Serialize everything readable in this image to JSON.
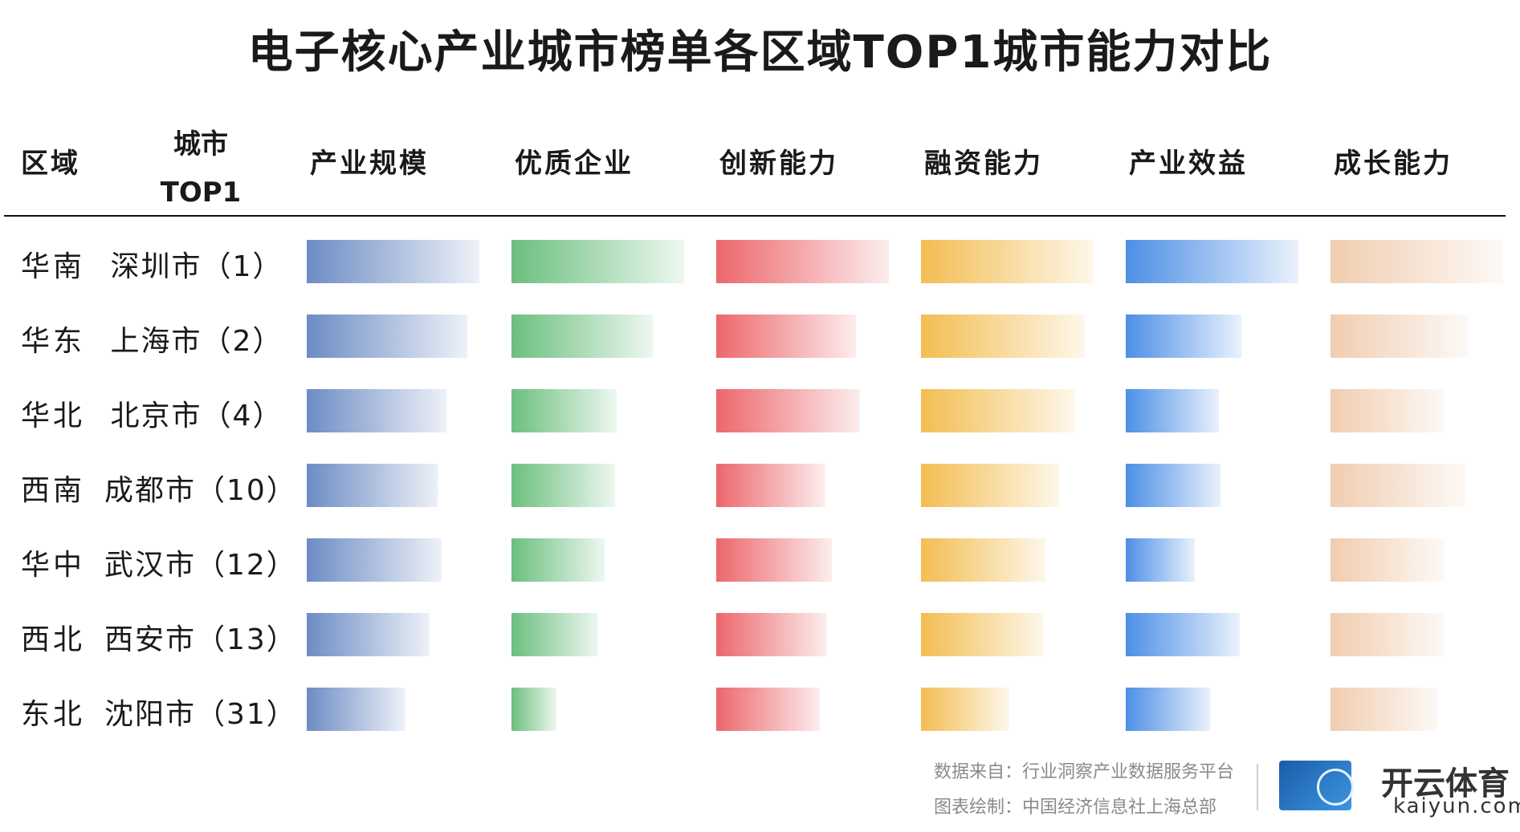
{
  "title": "电子核心产业城市榜单各区域TOP1城市能力对比",
  "headers": {
    "region": "区域",
    "city_line1": "城市",
    "city_line2": "TOP1"
  },
  "footer": {
    "source": "数据来自：行业洞察产业数据服务平台",
    "credit": "图表绘制：中国经济信息社上海总部",
    "brand": "开云体育",
    "brand_sub": "kaiyun.com"
  },
  "chart_data": {
    "type": "bar",
    "title": "电子核心产业城市榜单各区域TOP1城市能力对比",
    "categories": [
      "华南 深圳市（1）",
      "华东 上海市（2）",
      "华北 北京市（4）",
      "西南 成都市（10）",
      "华中 武汉市（12）",
      "西北 西安市（13）",
      "东北 沈阳市（31）"
    ],
    "rows": [
      {
        "region": "华南",
        "city": "深圳市（1）"
      },
      {
        "region": "华东",
        "city": "上海市（2）"
      },
      {
        "region": "华北",
        "city": "北京市（4）"
      },
      {
        "region": "西南",
        "city": "成都市（10）"
      },
      {
        "region": "华中",
        "city": "武汉市（12）"
      },
      {
        "region": "西北",
        "city": "西安市（13）"
      },
      {
        "region": "东北",
        "city": "沈阳市（31）"
      }
    ],
    "series": [
      {
        "name": "产业规模",
        "color": "#6d8cc4",
        "values": [
          1.0,
          0.93,
          0.81,
          0.76,
          0.78,
          0.71,
          0.57
        ]
      },
      {
        "name": "优质企业",
        "color": "#6cbf7f",
        "values": [
          1.0,
          0.82,
          0.61,
          0.6,
          0.54,
          0.5,
          0.26
        ]
      },
      {
        "name": "创新能力",
        "color": "#ec676c",
        "values": [
          1.0,
          0.81,
          0.83,
          0.63,
          0.67,
          0.64,
          0.6
        ]
      },
      {
        "name": "融资能力",
        "color": "#f3bd52",
        "values": [
          1.0,
          0.95,
          0.89,
          0.8,
          0.72,
          0.71,
          0.51
        ]
      },
      {
        "name": "产业效益",
        "color": "#4d8fe6",
        "values": [
          1.0,
          0.67,
          0.54,
          0.55,
          0.4,
          0.66,
          0.49
        ]
      },
      {
        "name": "成长能力",
        "color": "#f0cdb0",
        "values": [
          1.0,
          0.8,
          0.66,
          0.78,
          0.66,
          0.66,
          0.62
        ]
      }
    ],
    "xlim": [
      0,
      1
    ],
    "grid": false,
    "legend": "none"
  }
}
